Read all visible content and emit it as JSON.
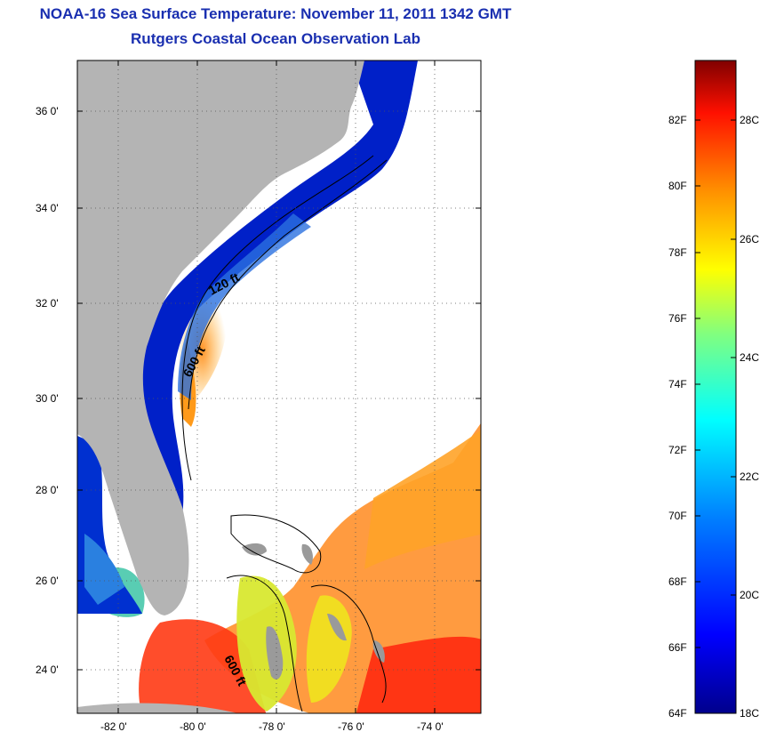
{
  "title": "NOAA-16 Sea Surface Temperature:  November 11, 2011 1342 GMT",
  "subtitle": "Rutgers Coastal Ocean Observation Lab",
  "lat_labels": [
    "36 0'",
    "34 0'",
    "32 0'",
    "30 0'",
    "28 0'",
    "26 0'",
    "24 0'"
  ],
  "lon_labels": [
    "-82 0'",
    "-80 0'",
    "-78 0'",
    "-76 0'",
    "-74 0'"
  ],
  "contour_labels": [
    "120 ft",
    "600 ft",
    "600 ft"
  ],
  "colorbar": {
    "fahrenheit": [
      "82F",
      "80F",
      "78F",
      "76F",
      "74F",
      "72F",
      "70F",
      "68F",
      "66F",
      "64F"
    ],
    "celsius": [
      "28C",
      "26C",
      "24C",
      "22C",
      "20C",
      "18C"
    ]
  },
  "colors": {
    "land": "#b4b4b4",
    "title": "#1a2fb0"
  }
}
